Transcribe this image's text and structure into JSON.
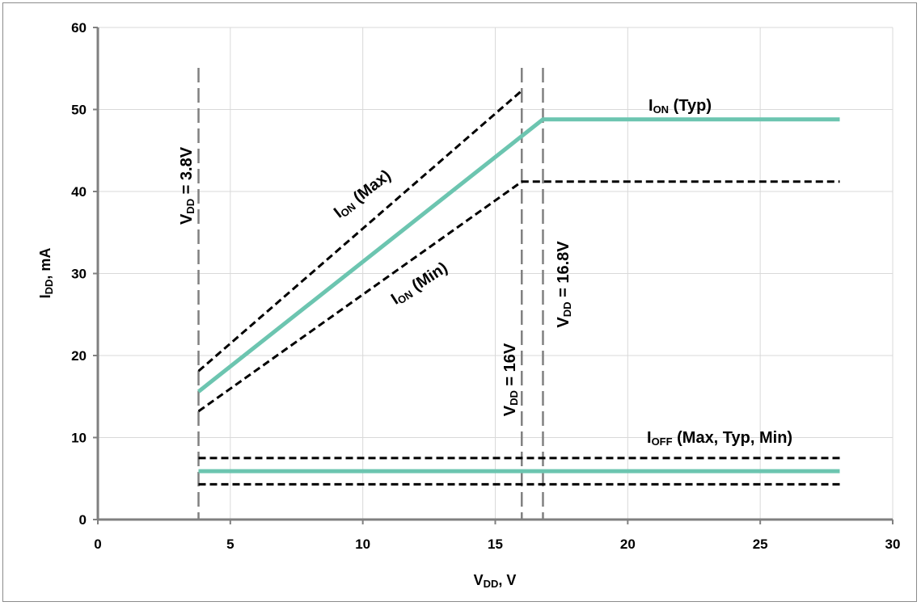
{
  "chart_data": {
    "type": "line",
    "xlabel": {
      "main": "V",
      "sub": "DD",
      "tail": ", V"
    },
    "ylabel": {
      "main": "I",
      "sub": "DD",
      "tail": ", mA"
    },
    "xlim": [
      0,
      30
    ],
    "ylim": [
      0,
      60
    ],
    "xticks": [
      0,
      5,
      10,
      15,
      20,
      25,
      30
    ],
    "yticks": [
      0,
      10,
      20,
      30,
      40,
      50,
      60
    ],
    "grid": true,
    "series": [
      {
        "name": "I_ON (Typ)",
        "style": "solid",
        "color": "#6cc5b0",
        "x": [
          3.8,
          16.8,
          28
        ],
        "y": [
          15.6,
          48.8,
          48.8
        ]
      },
      {
        "name": "I_ON (Max)",
        "style": "dashed",
        "color": "#000000",
        "x": [
          3.8,
          16.0
        ],
        "y": [
          18.1,
          52.3
        ]
      },
      {
        "name": "I_ON (Min)",
        "style": "dashed",
        "color": "#000000",
        "x": [
          3.8,
          16.0,
          28
        ],
        "y": [
          13.2,
          41.2,
          41.2
        ]
      },
      {
        "name": "I_OFF (Max)",
        "style": "dashed",
        "color": "#000000",
        "x": [
          3.8,
          28
        ],
        "y": [
          7.5,
          7.5
        ]
      },
      {
        "name": "I_OFF (Typ)",
        "style": "solid",
        "color": "#6cc5b0",
        "x": [
          3.8,
          28
        ],
        "y": [
          5.9,
          5.9
        ]
      },
      {
        "name": "I_OFF (Min)",
        "style": "dashed",
        "color": "#000000",
        "x": [
          3.8,
          28
        ],
        "y": [
          4.3,
          4.3
        ]
      }
    ],
    "vlines": [
      {
        "x": 3.8,
        "label": {
          "main": "V",
          "sub": "DD",
          "tail": " = 3.8V"
        }
      },
      {
        "x": 16.0,
        "label": {
          "main": "V",
          "sub": "DD",
          "tail": " = 16V"
        }
      },
      {
        "x": 16.8,
        "label": {
          "main": "V",
          "sub": "DD",
          "tail": " = 16.8V"
        }
      }
    ],
    "annotations": [
      {
        "main": "I",
        "sub": "ON",
        "tail": " (Typ)"
      },
      {
        "main": "I",
        "sub": "ON",
        "tail": " (Max)"
      },
      {
        "main": "I",
        "sub": "ON",
        "tail": " (Min)"
      },
      {
        "main": "I",
        "sub": "OFF",
        "tail": " (Max, Typ, Min)"
      }
    ],
    "colors": {
      "typ_line": "#6cc5b0",
      "limit_line": "#000000",
      "vline": "#808080",
      "grid": "#d9d9d9",
      "axis": "#808080"
    }
  }
}
